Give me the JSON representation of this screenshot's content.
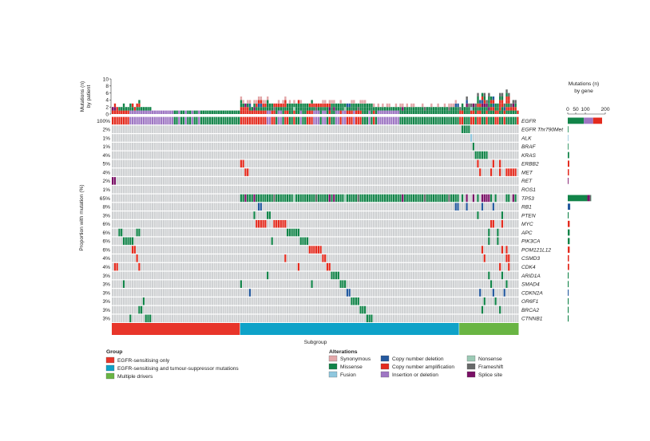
{
  "chart_data": {
    "type": "heatmap",
    "patients_n": 184,
    "genes": [
      "EGFR",
      "EGFR Thr790Met",
      "ALK",
      "BRAF",
      "KRAS",
      "ERBB2",
      "MET",
      "RET",
      "ROS1",
      "TP53",
      "RB1",
      "PTEN",
      "MYC",
      "APC",
      "PIK3CA",
      "POM121L12",
      "CSMD3",
      "CDK4",
      "ARID1A",
      "SMAD4",
      "CDKN2A",
      "OR6F1",
      "BRCA2",
      "CTNNB1"
    ],
    "proportion_labels": [
      "100%",
      "2%",
      "1%",
      "1%",
      "4%",
      "5%",
      "4%",
      "2%",
      "1%",
      "65%",
      "8%",
      "3%",
      "6%",
      "6%",
      "6%",
      "6%",
      "4%",
      "4%",
      "3%",
      "3%",
      "3%",
      "3%",
      "3%",
      "3%"
    ],
    "y_axis_label": "Proportion with mutation (%)",
    "top_panel": {
      "ylabel": "Mutations (n) by patient",
      "ticks": [
        "10",
        "8",
        "6",
        "4",
        "2",
        "0"
      ],
      "ylim": [
        0,
        10
      ]
    },
    "right_panel": {
      "title": "Mutations (n) by gene",
      "ticks": [
        "0",
        "50",
        "100",
        "200"
      ],
      "values": [
        184,
        3,
        2,
        2,
        8,
        9,
        7,
        4,
        2,
        130,
        14,
        5,
        11,
        11,
        11,
        11,
        7,
        8,
        5,
        5,
        5,
        5,
        5,
        5
      ]
    },
    "subgroup_label": "Subgroup",
    "subgroups": [
      {
        "name": "EGFR-sensitising only",
        "color": "#e8352a",
        "count": 58
      },
      {
        "name": "EGFR-sensitising and tumour-suppressor mutations",
        "color": "#0ea2c8",
        "count": 99
      },
      {
        "name": "Multiple drivers",
        "color": "#69b543",
        "count": 27
      }
    ],
    "alterations": [
      {
        "name": "Synonymous",
        "color": "#e3a7a9"
      },
      {
        "name": "Missense",
        "color": "#128449"
      },
      {
        "name": "Fusion",
        "color": "#8fc7de"
      },
      {
        "name": "Copy number deletion",
        "color": "#24599e"
      },
      {
        "name": "Copy number amplification",
        "color": "#e32b1e"
      },
      {
        "name": "Insertion or deletion",
        "color": "#9e76c3"
      },
      {
        "name": "Nonsense",
        "color": "#9ccab5"
      },
      {
        "name": "Frameshift",
        "color": "#676969"
      },
      {
        "name": "Splice site",
        "color": "#7a1066"
      }
    ]
  },
  "legend": {
    "group_title": "Group",
    "alterations_title": "Alterations"
  }
}
